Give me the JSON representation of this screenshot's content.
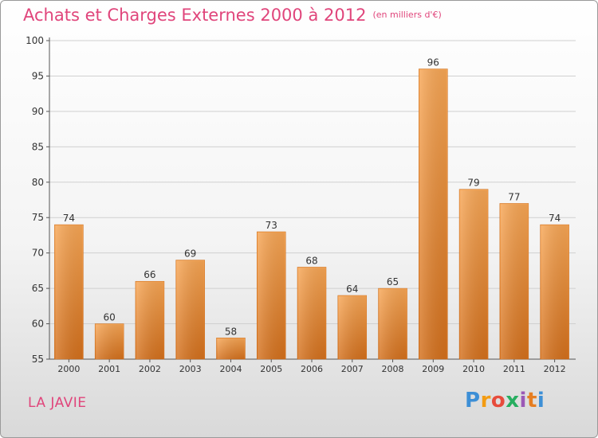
{
  "chart_data": {
    "type": "bar",
    "title": "Achats et Charges Externes 2000 à 2012",
    "subtitle": "(en milliers d'€)",
    "categories": [
      "2000",
      "2001",
      "2002",
      "2003",
      "2004",
      "2005",
      "2006",
      "2007",
      "2008",
      "2009",
      "2010",
      "2011",
      "2012"
    ],
    "values": [
      74,
      60,
      66,
      69,
      58,
      73,
      68,
      64,
      65,
      96,
      79,
      77,
      74
    ],
    "ylim": [
      55,
      100
    ],
    "yticks": [
      55,
      60,
      65,
      70,
      75,
      80,
      85,
      90,
      95,
      100
    ],
    "grid": true,
    "bar_color": "#f0902e"
  },
  "commune": "LA JAVIE",
  "logo": {
    "letters": [
      "P",
      "r",
      "o",
      "x",
      "i",
      "t",
      "i"
    ],
    "colors": [
      "#3d8fd6",
      "#f39c12",
      "#e74c3c",
      "#27ae60",
      "#9b59b6",
      "#e67e22",
      "#3d8fd6"
    ]
  }
}
